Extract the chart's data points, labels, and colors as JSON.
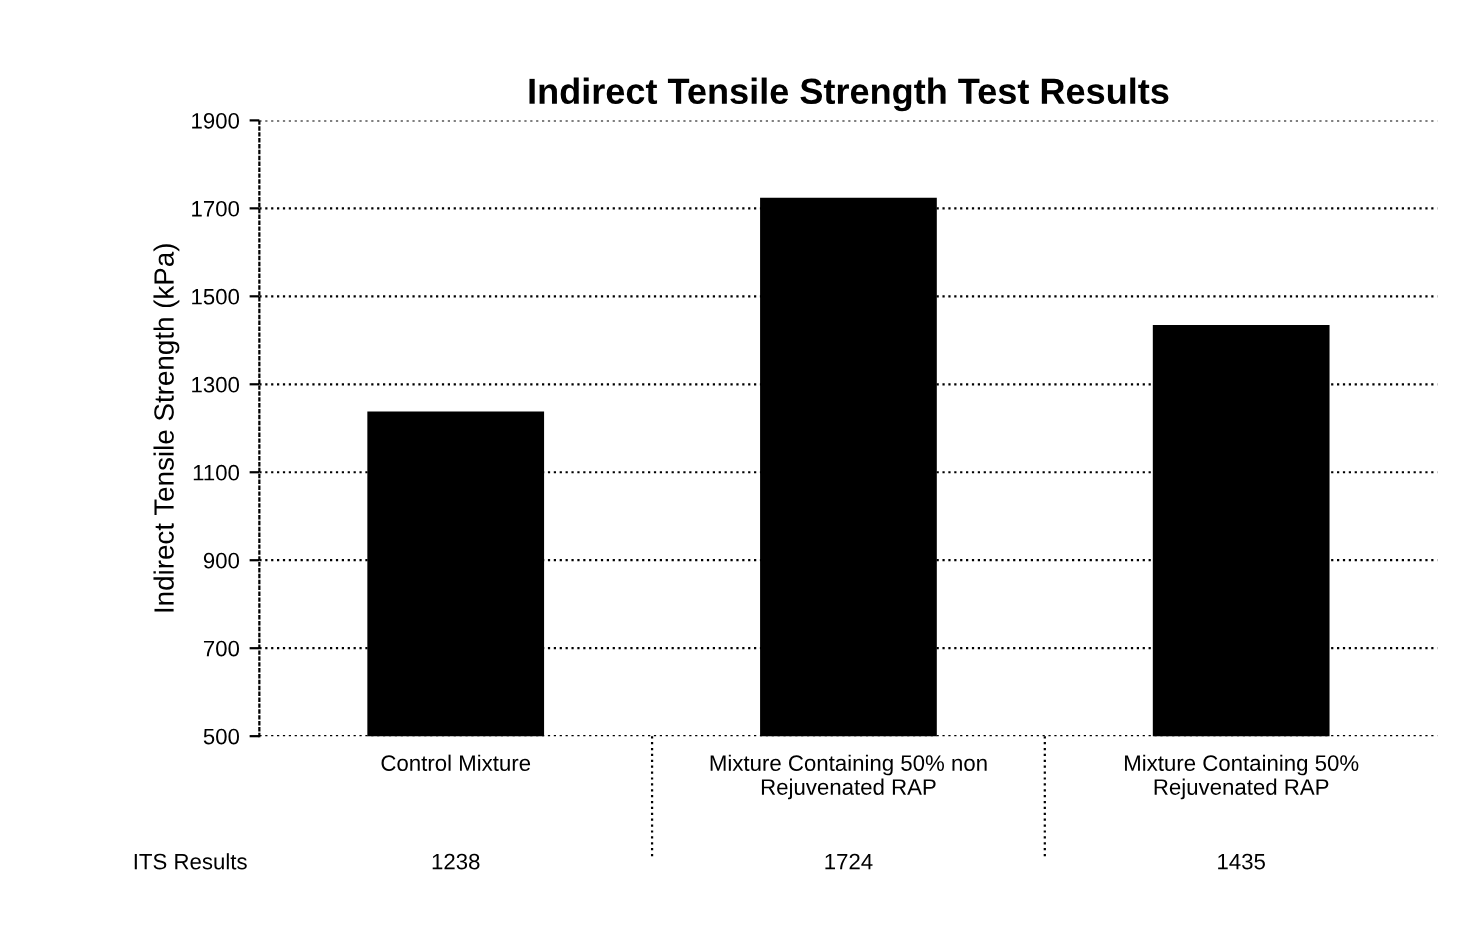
{
  "chart_data": {
    "type": "bar",
    "title": "Indirect Tensile Strength Test Results",
    "ylabel": "Indirect Tensile Strength (kPa)",
    "categories": [
      "Control Mixture",
      "Mixture Containing 50% non Rejuvenated RAP",
      "Mixture Containing 50% Rejuvenated RAP"
    ],
    "values": [
      1238,
      1724,
      1435
    ],
    "color": "#000000",
    "ylim": [
      500,
      1900
    ],
    "yticks": [
      500,
      700,
      900,
      1100,
      1300,
      1500,
      1700,
      1900
    ],
    "grid": "y",
    "line_style": "dotted",
    "data_labels": true,
    "annotations": [
      "ITS Results"
    ]
  }
}
